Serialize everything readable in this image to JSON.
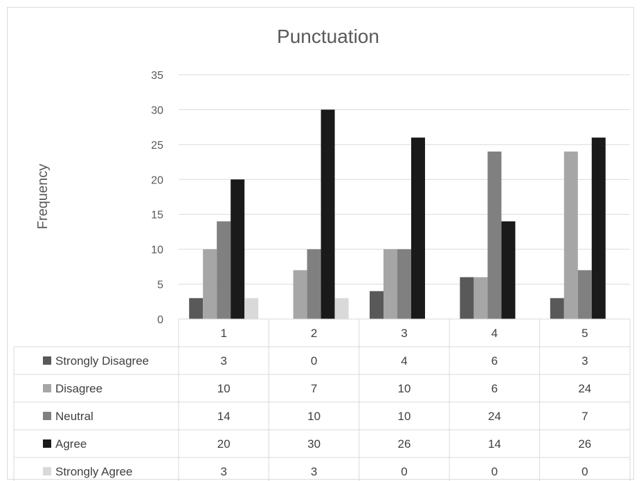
{
  "chart_data": {
    "type": "bar",
    "title": "Punctuation",
    "xlabel": "",
    "ylabel": "Frequency",
    "ylim": [
      0,
      35
    ],
    "yticks": [
      0,
      5,
      10,
      15,
      20,
      25,
      30,
      35
    ],
    "categories": [
      "1",
      "2",
      "3",
      "4",
      "5"
    ],
    "grid": true,
    "legend": "data-table",
    "series": [
      {
        "name": "Strongly Disagree",
        "color": "#595959",
        "values": [
          3,
          0,
          4,
          6,
          3
        ]
      },
      {
        "name": "Disagree",
        "color": "#a6a6a6",
        "values": [
          10,
          7,
          10,
          6,
          24
        ]
      },
      {
        "name": "Neutral",
        "color": "#808080",
        "values": [
          14,
          10,
          10,
          24,
          7
        ]
      },
      {
        "name": "Agree",
        "color": "#1a1a1a",
        "values": [
          20,
          30,
          26,
          14,
          26
        ]
      },
      {
        "name": "Strongly Agree",
        "color": "#d9d9d9",
        "values": [
          3,
          3,
          0,
          0,
          0
        ]
      }
    ]
  }
}
